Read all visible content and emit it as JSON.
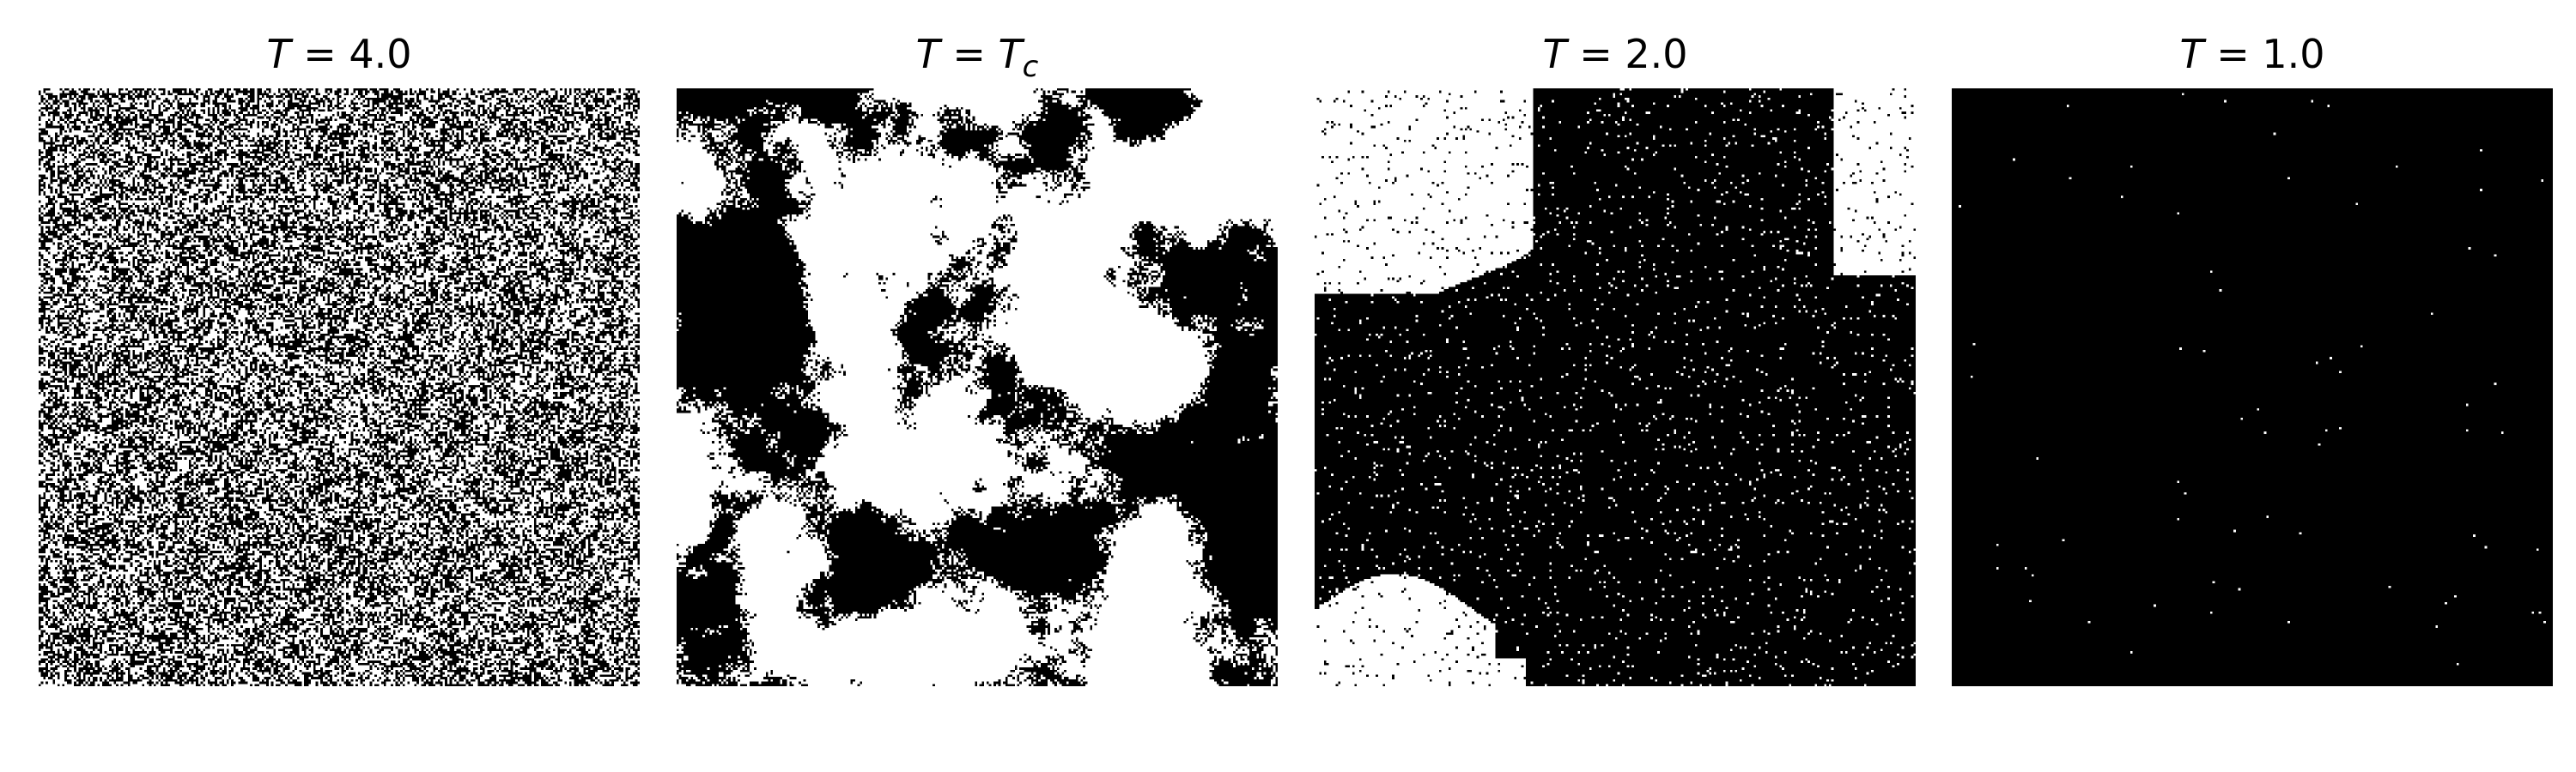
{
  "figure": {
    "colors": {
      "spin_up": "#ffffff",
      "spin_down": "#000000",
      "background": "#ffffff"
    },
    "panels": [
      {
        "title_var": "T",
        "title_eq": " = ",
        "title_val": "4.0",
        "title_val_var": "",
        "title_sub": "",
        "regime": "disordered",
        "fraction_white": 0.5
      },
      {
        "title_var": "T",
        "title_eq": " = ",
        "title_val": "",
        "title_val_var": "T",
        "title_sub": "c",
        "regime": "critical",
        "fraction_white": 0.55
      },
      {
        "title_var": "T",
        "title_eq": " = ",
        "title_val": "2.0",
        "title_val_var": "",
        "title_sub": "",
        "regime": "ordered-domains",
        "fraction_white": 0.2
      },
      {
        "title_var": "T",
        "title_eq": " = ",
        "title_val": "1.0",
        "title_val_var": "",
        "title_sub": "",
        "regime": "fully-ordered",
        "fraction_white": 0.001
      }
    ]
  }
}
